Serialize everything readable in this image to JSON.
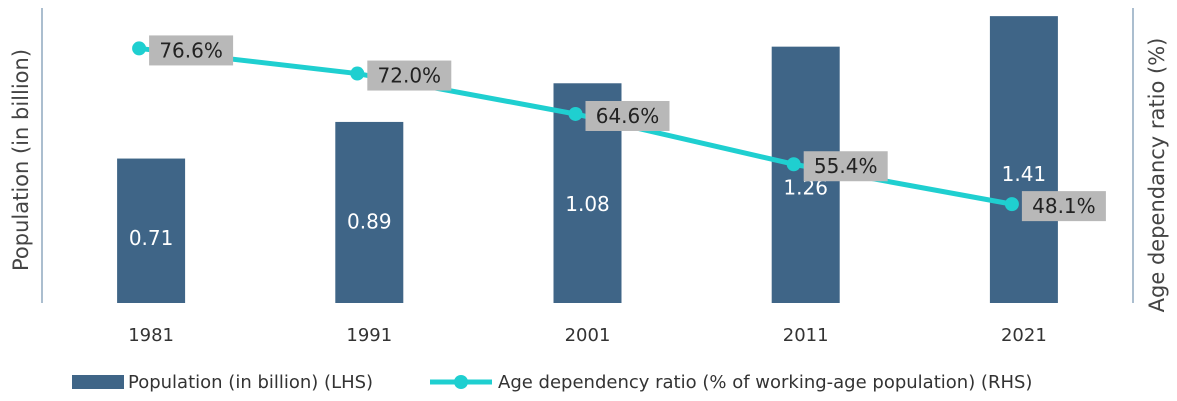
{
  "chart_data": {
    "type": "bar",
    "categories": [
      "1981",
      "1991",
      "2001",
      "2011",
      "2021"
    ],
    "series": [
      {
        "name": "Population (in billion) (LHS)",
        "type": "bar",
        "axis": "left",
        "values": [
          0.71,
          0.89,
          1.08,
          1.26,
          1.41
        ],
        "labels": [
          "0.71",
          "0.89",
          "1.08",
          "1.26",
          "1.41"
        ],
        "color": "#3f6587"
      },
      {
        "name": "Age dependency ratio (% of working-age population) (RHS)",
        "type": "line",
        "axis": "right",
        "values": [
          76.6,
          72.0,
          64.6,
          55.4,
          48.1
        ],
        "labels": [
          "76.6%",
          "72.0%",
          "64.6%",
          "55.4%",
          "48.1%"
        ],
        "color": "#1fcfd0",
        "label_box_color": "#b8b8b8"
      }
    ],
    "ylabel": "Population (in billion)",
    "y2label": "Age dependancy ratio (%)",
    "ylim": [
      0,
      1.45
    ],
    "y2lim": [
      30,
      84
    ],
    "grid": false,
    "legend_position": "bottom"
  }
}
